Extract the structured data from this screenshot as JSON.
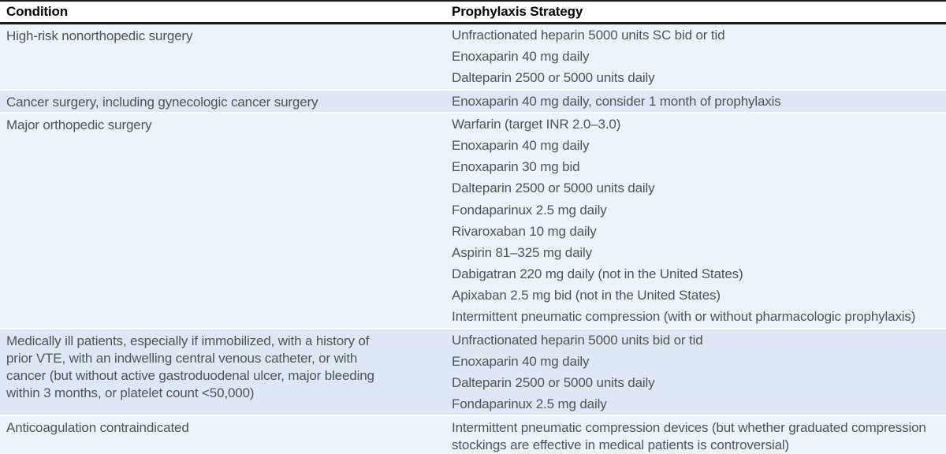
{
  "header": {
    "condition": "Condition",
    "strategy": "Prophylaxis Strategy"
  },
  "colors": {
    "row_light": "#eaf4f9",
    "row_dark": "#dde8f4",
    "rule": "#1a1a1a",
    "body_text": "#515359",
    "header_text": "#000000"
  },
  "table": {
    "rows": [
      {
        "condition": "High-risk nonorthopedic surgery",
        "strategies": [
          "Unfractionated heparin 5000 units SC bid or tid",
          "Enoxaparin 40 mg daily",
          "Dalteparin 2500 or 5000 units daily"
        ]
      },
      {
        "condition": "Cancer surgery, including gynecologic cancer surgery",
        "strategies": [
          "Enoxaparin 40 mg daily, consider 1 month of prophylaxis"
        ]
      },
      {
        "condition": "Major orthopedic surgery",
        "strategies": [
          "Warfarin (target INR 2.0–3.0)",
          "Enoxaparin 40 mg daily",
          "Enoxaparin 30 mg bid",
          "Dalteparin 2500 or 5000 units daily",
          "Fondaparinux 2.5 mg daily",
          "Rivaroxaban 10 mg daily",
          "Aspirin 81–325 mg daily",
          "Dabigatran 220 mg daily (not in the United States)",
          "Apixaban 2.5 mg bid (not in the United States)",
          "Intermittent pneumatic compression (with or without pharmacologic prophylaxis)"
        ]
      },
      {
        "condition": "Medically ill patients, especially if immobilized, with a history of prior VTE, with an indwelling central venous catheter, or with cancer (but without active gastroduodenal ulcer, major bleeding within 3 months, or platelet count <50,000)",
        "strategies": [
          "Unfractionated heparin 5000 units bid or tid",
          "Enoxaparin 40 mg daily",
          "Dalteparin 2500 or 5000 units daily",
          "Fondaparinux 2.5 mg daily"
        ]
      },
      {
        "condition": "Anticoagulation contraindicated",
        "strategies": [
          "Intermittent pneumatic compression devices (but whether graduated compression stockings are effective in medical patients is controversial)"
        ]
      }
    ]
  }
}
